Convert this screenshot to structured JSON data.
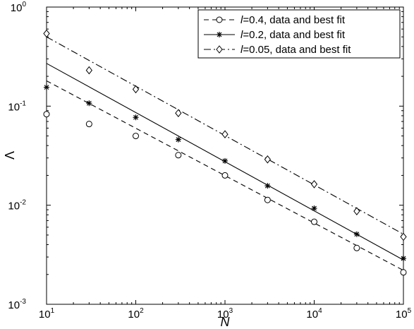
{
  "chart_data": {
    "type": "scatter",
    "xlabel": "N",
    "ylabel": "Λ",
    "xscale": "log",
    "yscale": "log",
    "xlim": [
      10,
      100000
    ],
    "ylim": [
      0.001,
      1
    ],
    "grid": false,
    "legend_position": "top-right",
    "x_ticks": [
      {
        "base": "10",
        "exp": "1"
      },
      {
        "base": "10",
        "exp": "2"
      },
      {
        "base": "10",
        "exp": "3"
      },
      {
        "base": "10",
        "exp": "4"
      },
      {
        "base": "10",
        "exp": "5"
      }
    ],
    "y_ticks": [
      {
        "base": "10",
        "exp": "-3"
      },
      {
        "base": "10",
        "exp": "-2"
      },
      {
        "base": "10",
        "exp": "-1"
      },
      {
        "base": "10",
        "exp": "0"
      }
    ],
    "x": [
      10,
      30,
      100,
      300,
      1000,
      3000,
      10000,
      30000,
      100000
    ],
    "series": [
      {
        "name_var": "l",
        "name_rest": "=0.4, data and best fit",
        "marker": "circle",
        "line_style": "dashed",
        "values": [
          0.083,
          0.066,
          0.05,
          0.032,
          0.02,
          0.0113,
          0.0068,
          0.0037,
          0.0021
        ],
        "fit": {
          "x": [
            10,
            100000
          ],
          "y": [
            0.18,
            0.0022
          ]
        }
      },
      {
        "name_var": "l",
        "name_rest": "=0.2, data and best fit",
        "marker": "star",
        "line_style": "solid",
        "values": [
          0.155,
          0.107,
          0.077,
          0.046,
          0.028,
          0.0157,
          0.0093,
          0.0051,
          0.0029
        ],
        "fit": {
          "x": [
            10,
            100000
          ],
          "y": [
            0.27,
            0.0028
          ]
        }
      },
      {
        "name_var": "l",
        "name_rest": "=0.05, data and best fit",
        "marker": "diamond",
        "line_style": "dashdot",
        "values": [
          0.54,
          0.23,
          0.148,
          0.085,
          0.052,
          0.029,
          0.0163,
          0.0087,
          0.0048
        ],
        "fit": {
          "x": [
            10,
            100000
          ],
          "y": [
            0.5,
            0.0051
          ]
        }
      }
    ]
  }
}
